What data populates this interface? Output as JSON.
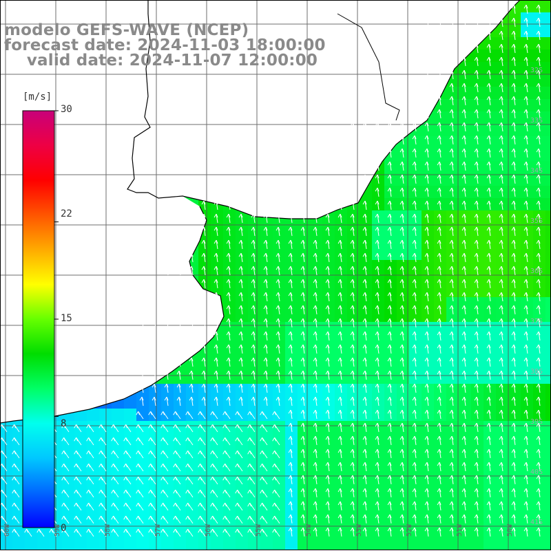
{
  "title": {
    "line1": "modelo GEFS-WAVE (NCEP)",
    "line2": "forecast date: 2024-11-03 18:00:00",
    "line3": "    valid date: 2024-11-07 12:00:00"
  },
  "colorbar": {
    "unit": "[m/s]",
    "ticks": [
      "30",
      "22",
      "15",
      "8",
      "0"
    ],
    "tick_values": [
      30,
      22,
      15,
      8,
      0
    ],
    "min": 0,
    "max": 30,
    "colors": [
      "#0000ff",
      "#0066ff",
      "#00c8ff",
      "#00ffee",
      "#00ff66",
      "#00dd00",
      "#66ff00",
      "#ffff00",
      "#ffaa00",
      "#ff5500",
      "#ff0000",
      "#ee0044",
      "#c8007a"
    ]
  },
  "map": {
    "land_color": "#ffffff",
    "grid_color": "#555555",
    "coast_color": "#000000",
    "arrow_color": "#ffffff",
    "lat_labels": [
      "32S",
      "33S",
      "34S",
      "35S",
      "36S",
      "37S",
      "38S",
      "39S",
      "40S",
      "41S"
    ],
    "lon_labels": [
      "60W",
      "59W",
      "58W",
      "57W",
      "56W",
      "55W",
      "54W",
      "53W",
      "52W",
      "51W",
      "50W"
    ]
  }
}
